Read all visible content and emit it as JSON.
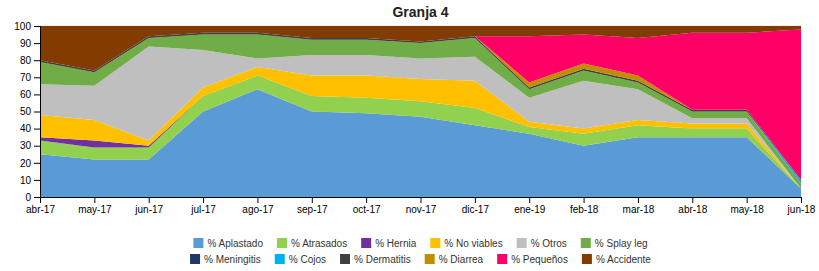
{
  "chart_data": {
    "type": "area",
    "title": "Granja 4",
    "stacked": true,
    "grid": true,
    "legend": "bottom",
    "categories": [
      "abr-17",
      "may-17",
      "jun-17",
      "jul-17",
      "ago-17",
      "sep-17",
      "oct-17",
      "nov-17",
      "dic-17",
      "ene-19",
      "feb-18",
      "mar-18",
      "abr-18",
      "may-18",
      "jun-18"
    ],
    "series": [
      {
        "name": "% Aplastado",
        "color": "#5B9BD5",
        "values": [
          25,
          22,
          22,
          50,
          63,
          50,
          49,
          47,
          42,
          37,
          30,
          35,
          35,
          35,
          5
        ]
      },
      {
        "name": "% Atrasados",
        "color": "#92D050",
        "values": [
          8,
          7,
          7,
          9,
          8,
          9,
          9,
          9,
          10,
          4,
          7,
          7,
          5,
          5,
          0
        ]
      },
      {
        "name": "% Hernia",
        "color": "#7030A0",
        "values": [
          2,
          4,
          1,
          0,
          0,
          0,
          0,
          0,
          0,
          0,
          0,
          0,
          0,
          0,
          0
        ]
      },
      {
        "name": "% No viables",
        "color": "#FFC000",
        "values": [
          13,
          12,
          3,
          5,
          5,
          12,
          13,
          13,
          16,
          3,
          3,
          3,
          3,
          3,
          0
        ]
      },
      {
        "name": "% Otros",
        "color": "#BFBFBF",
        "values": [
          18,
          20,
          55,
          22,
          5,
          12,
          12,
          12,
          14,
          14,
          28,
          18,
          3,
          3,
          0
        ]
      },
      {
        "name": "% Splay leg",
        "color": "#70AD47",
        "values": [
          13,
          8,
          5,
          9,
          14,
          9,
          9,
          9,
          11,
          5,
          6,
          4,
          4,
          4,
          3
        ]
      },
      {
        "name": "% Meningitis",
        "color": "#1F3864",
        "values": [
          0,
          0,
          0,
          0,
          0,
          0,
          0,
          0,
          0,
          0,
          0,
          0,
          0,
          0,
          0
        ]
      },
      {
        "name": "% Cojos",
        "color": "#00B0F0",
        "values": [
          0,
          0,
          0,
          0,
          0,
          0,
          0,
          0,
          0,
          0,
          0,
          0,
          0,
          0,
          2
        ]
      },
      {
        "name": "% Dermatitis",
        "color": "#404040",
        "values": [
          1,
          1,
          1,
          1,
          1,
          1,
          1,
          1,
          1,
          1,
          1,
          1,
          1,
          1,
          0
        ]
      },
      {
        "name": "% Diarrea",
        "color": "#BF8F00",
        "values": [
          0,
          0,
          0,
          0,
          0,
          0,
          0,
          0,
          0,
          3,
          3,
          3,
          0,
          0,
          0
        ]
      },
      {
        "name": "% Pequeños",
        "color": "#FF0066",
        "values": [
          0,
          0,
          0,
          0,
          0,
          0,
          0,
          0,
          0,
          27,
          17,
          22,
          45,
          45,
          88
        ]
      },
      {
        "name": "% Accidente",
        "color": "#833C00",
        "values": [
          20,
          26,
          6,
          4,
          4,
          7,
          7,
          9,
          6,
          6,
          5,
          7,
          4,
          4,
          2
        ]
      }
    ],
    "ylim": [
      0,
      100
    ],
    "yticks": [
      0,
      10,
      20,
      30,
      40,
      50,
      60,
      70,
      80,
      90,
      100
    ]
  }
}
